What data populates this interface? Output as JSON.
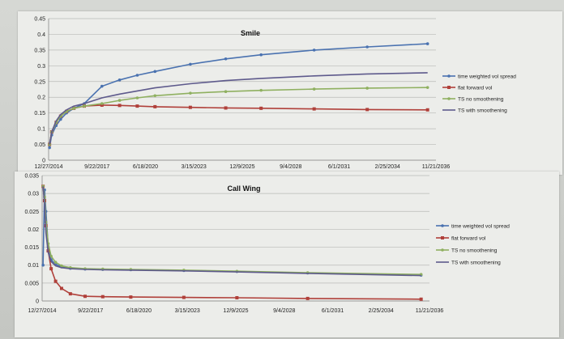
{
  "colors": {
    "time_weighted": "#4a72b0",
    "flat_forward": "#b0403a",
    "ts_no_smooth": "#8fb060",
    "ts_smooth": "#5e5a8c"
  },
  "chart_data": [
    {
      "type": "line",
      "title": "Smile",
      "xlabel": "",
      "ylabel": "",
      "x_tick_labels": [
        "12/27/2014",
        "9/22/2017",
        "6/18/2020",
        "3/15/2023",
        "12/9/2025",
        "9/4/2028",
        "6/1/2031",
        "2/25/2034",
        "11/21/2036"
      ],
      "x_range": [
        "2014-12-27",
        "2036-11-21"
      ],
      "y_tick_labels": [
        "0",
        "0.05",
        "0.1",
        "0.15",
        "0.2",
        "0.25",
        "0.3",
        "0.35",
        "0.4",
        "0.45"
      ],
      "ylim": [
        0,
        0.45
      ],
      "legend_position": "right",
      "series": [
        {
          "name": "time weighted vol spread",
          "color_key": "time_weighted",
          "markers": true,
          "x": [
            "2015-01-15",
            "2015-03-01",
            "2015-06-01",
            "2015-09-01",
            "2016-01-01",
            "2016-06-01",
            "2017-01-01",
            "2018-01-01",
            "2019-01-01",
            "2020-01-01",
            "2021-01-01",
            "2023-01-01",
            "2025-01-01",
            "2027-01-01",
            "2030-01-01",
            "2033-01-01",
            "2036-06-01"
          ],
          "y": [
            0.04,
            0.08,
            0.11,
            0.13,
            0.15,
            0.165,
            0.18,
            0.235,
            0.255,
            0.27,
            0.282,
            0.305,
            0.322,
            0.335,
            0.35,
            0.36,
            0.37
          ]
        },
        {
          "name": "flat forward vol",
          "color_key": "flat_forward",
          "markers": true,
          "x": [
            "2015-01-15",
            "2015-03-01",
            "2015-06-01",
            "2015-09-01",
            "2016-01-01",
            "2016-06-01",
            "2017-01-01",
            "2018-01-01",
            "2019-01-01",
            "2020-01-01",
            "2021-01-01",
            "2023-01-01",
            "2025-01-01",
            "2027-01-01",
            "2030-01-01",
            "2033-01-01",
            "2036-06-01"
          ],
          "y": [
            0.05,
            0.09,
            0.12,
            0.14,
            0.155,
            0.165,
            0.172,
            0.175,
            0.174,
            0.172,
            0.17,
            0.168,
            0.166,
            0.165,
            0.163,
            0.161,
            0.16
          ]
        },
        {
          "name": "TS no smoothening",
          "color_key": "ts_no_smooth",
          "markers": true,
          "x": [
            "2015-01-15",
            "2015-03-01",
            "2015-06-01",
            "2015-09-01",
            "2016-01-01",
            "2016-06-01",
            "2017-01-01",
            "2018-01-01",
            "2019-01-01",
            "2020-01-01",
            "2021-01-01",
            "2023-01-01",
            "2025-01-01",
            "2027-01-01",
            "2030-01-01",
            "2033-01-01",
            "2036-06-01"
          ],
          "y": [
            0.05,
            0.09,
            0.12,
            0.14,
            0.155,
            0.165,
            0.172,
            0.18,
            0.19,
            0.198,
            0.205,
            0.213,
            0.218,
            0.222,
            0.226,
            0.229,
            0.231
          ]
        },
        {
          "name": "TS with smoothening",
          "color_key": "ts_smooth",
          "markers": false,
          "x": [
            "2015-01-15",
            "2015-03-01",
            "2015-06-01",
            "2015-09-01",
            "2016-01-01",
            "2016-06-01",
            "2017-01-01",
            "2018-01-01",
            "2019-01-01",
            "2020-01-01",
            "2021-01-01",
            "2023-01-01",
            "2025-01-01",
            "2027-01-01",
            "2030-01-01",
            "2033-01-01",
            "2036-06-01"
          ],
          "y": [
            0.05,
            0.09,
            0.125,
            0.145,
            0.16,
            0.172,
            0.18,
            0.198,
            0.21,
            0.22,
            0.23,
            0.243,
            0.253,
            0.26,
            0.268,
            0.274,
            0.278
          ]
        }
      ]
    },
    {
      "type": "line",
      "title": "Call Wing",
      "xlabel": "",
      "ylabel": "",
      "x_tick_labels": [
        "12/27/2014",
        "9/22/2017",
        "6/18/2020",
        "3/15/2023",
        "12/9/2025",
        "9/4/2028",
        "6/1/2031",
        "2/25/2034",
        "11/21/2036"
      ],
      "x_range": [
        "2014-12-27",
        "2036-11-21"
      ],
      "y_tick_labels": [
        "0",
        "0.005",
        "0.01",
        "0.015",
        "0.02",
        "0.025",
        "0.03",
        "0.035"
      ],
      "ylim": [
        0,
        0.035
      ],
      "legend_position": "right",
      "series": [
        {
          "name": "time weighted vol spread",
          "color_key": "time_weighted",
          "markers": true,
          "x": [
            "2015-01-15",
            "2015-02-15",
            "2015-03-15",
            "2015-05-01",
            "2015-07-01",
            "2015-10-01",
            "2016-02-01",
            "2016-08-01",
            "2017-06-01",
            "2018-06-01",
            "2020-01-01",
            "2023-01-01",
            "2026-01-01",
            "2030-01-01",
            "2036-06-01"
          ],
          "y": [
            0.01,
            0.031,
            0.025,
            0.015,
            0.0115,
            0.0102,
            0.0095,
            0.0091,
            0.0089,
            0.0088,
            0.0087,
            0.0085,
            0.0082,
            0.0078,
            0.0072
          ]
        },
        {
          "name": "flat forward vol",
          "color_key": "flat_forward",
          "markers": true,
          "x": [
            "2015-01-15",
            "2015-02-15",
            "2015-03-15",
            "2015-05-01",
            "2015-07-01",
            "2015-10-01",
            "2016-02-01",
            "2016-08-01",
            "2017-06-01",
            "2018-06-01",
            "2020-01-01",
            "2023-01-01",
            "2026-01-01",
            "2030-01-01",
            "2036-06-01"
          ],
          "y": [
            0.032,
            0.028,
            0.021,
            0.014,
            0.009,
            0.0055,
            0.0035,
            0.002,
            0.0013,
            0.0012,
            0.0011,
            0.001,
            0.0009,
            0.0007,
            0.0005
          ]
        },
        {
          "name": "TS no smoothening",
          "color_key": "ts_no_smooth",
          "markers": true,
          "x": [
            "2015-01-15",
            "2015-02-15",
            "2015-03-15",
            "2015-05-01",
            "2015-07-01",
            "2015-10-01",
            "2016-02-01",
            "2016-08-01",
            "2017-06-01",
            "2018-06-01",
            "2020-01-01",
            "2023-01-01",
            "2026-01-01",
            "2030-01-01",
            "2036-06-01"
          ],
          "y": [
            0.032,
            0.029,
            0.022,
            0.016,
            0.0125,
            0.0108,
            0.0098,
            0.0093,
            0.009,
            0.0089,
            0.0088,
            0.0086,
            0.0083,
            0.0079,
            0.0074
          ]
        },
        {
          "name": "TS with smoothening",
          "color_key": "ts_smooth",
          "markers": false,
          "x": [
            "2015-01-15",
            "2015-02-15",
            "2015-03-15",
            "2015-05-01",
            "2015-07-01",
            "2015-10-01",
            "2016-02-01",
            "2016-08-01",
            "2017-06-01",
            "2018-06-01",
            "2020-01-01",
            "2023-01-01",
            "2026-01-01",
            "2030-01-01",
            "2036-06-01"
          ],
          "y": [
            0.032,
            0.027,
            0.019,
            0.0135,
            0.011,
            0.0098,
            0.0093,
            0.009,
            0.0088,
            0.0087,
            0.0086,
            0.0084,
            0.0081,
            0.0077,
            0.0071
          ]
        }
      ]
    }
  ]
}
